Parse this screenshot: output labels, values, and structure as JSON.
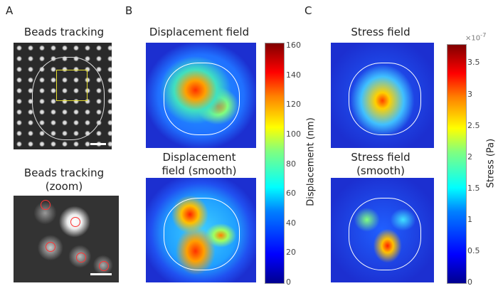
{
  "panels": {
    "A": {
      "letter": "A",
      "title_top": "Beads tracking",
      "title_bottom_1": "Beads tracking",
      "title_bottom_2": "(zoom)"
    },
    "B": {
      "letter": "B",
      "title_top": "Displacement field",
      "title_bottom_1": "Displacement",
      "title_bottom_2": "field (smooth)"
    },
    "C": {
      "letter": "C",
      "title_top": "Stress field",
      "title_bottom_1": "Stress field",
      "title_bottom_2": "(smooth)"
    }
  },
  "colorbars": {
    "displacement": {
      "label": "Displacement (nm)",
      "ticks": [
        "160",
        "140",
        "120",
        "100",
        "80",
        "60",
        "40",
        "20",
        "0"
      ],
      "range": [
        0,
        162
      ]
    },
    "stress": {
      "label": "Stress (Pa)",
      "multiplier": "×10",
      "exponent": "-7",
      "ticks": [
        "3.5",
        "3",
        "2.5",
        "2",
        "1.5",
        "1",
        "0.5",
        "0"
      ],
      "range": [
        0,
        3.8
      ]
    }
  },
  "colors": {
    "outline": "#ffffff",
    "roi_box": "#e8e030",
    "bead_marker": "#ff3030"
  }
}
